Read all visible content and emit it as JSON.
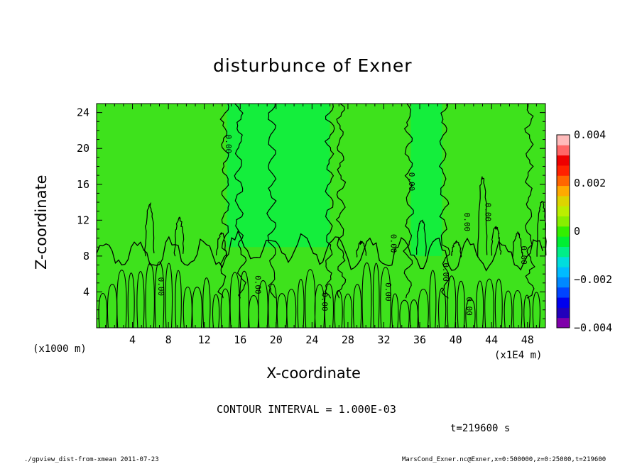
{
  "chart_data": {
    "type": "heatmap",
    "title": "disturbunce of Exner",
    "xlabel": "X-coordinate",
    "ylabel": "Z-coordinate",
    "x_unit_left": "(x1000 m)",
    "x_unit_right": "(x1E4 m)",
    "xlim": [
      0,
      50
    ],
    "ylim": [
      0,
      25
    ],
    "x_ticks": [
      "4",
      "8",
      "12",
      "16",
      "20",
      "24",
      "28",
      "32",
      "36",
      "40",
      "44",
      "48"
    ],
    "y_ticks": [
      "4",
      "8",
      "12",
      "16",
      "20",
      "24"
    ],
    "colorbar": {
      "range": [
        -0.004,
        0.004
      ],
      "tick_labels": [
        "0.004",
        "0.002",
        "0",
        "−0.002",
        "−0.004"
      ],
      "colors": [
        "#7f00aa",
        "#2200bb",
        "#0000ee",
        "#0044ff",
        "#0088ff",
        "#00bbff",
        "#00dddd",
        "#00ee88",
        "#00ee33",
        "#33ee00",
        "#88ee00",
        "#bbee00",
        "#ddd400",
        "#ffaa00",
        "#ff6600",
        "#ff2200",
        "#ee0000",
        "#ff6666",
        "#ffbbbb"
      ]
    },
    "regions": [
      {
        "x0": 0,
        "x1": 14.5,
        "z0": 0,
        "z1": 25,
        "level": "0"
      },
      {
        "x0": 14.5,
        "x1": 26,
        "z0": 9,
        "z1": 25,
        "level": "-0.0005"
      },
      {
        "x0": 26,
        "x1": 35,
        "z0": 0,
        "z1": 25,
        "level": "0"
      },
      {
        "x0": 35,
        "x1": 38.5,
        "z0": 8,
        "z1": 25,
        "level": "-0.0005"
      },
      {
        "x0": 38.5,
        "x1": 50,
        "z0": 0,
        "z1": 25,
        "level": "0"
      }
    ],
    "contour_labels": [
      {
        "text": "0.00",
        "x": 14.4,
        "z": 20.5
      },
      {
        "text": "0.00",
        "x": 6.9,
        "z": 4.6
      },
      {
        "text": "0.00",
        "x": 17.7,
        "z": 4.8
      },
      {
        "text": "0.00",
        "x": 25.1,
        "z": 2.9
      },
      {
        "text": "0.00",
        "x": 32.2,
        "z": 4.0
      },
      {
        "text": "0.00",
        "x": 32.8,
        "z": 9.4
      },
      {
        "text": "0.00",
        "x": 34.8,
        "z": 16.3
      },
      {
        "text": "0.00",
        "x": 38.6,
        "z": 6.2
      },
      {
        "text": "0.00",
        "x": 41.2,
        "z": 2.4
      },
      {
        "text": "0.00",
        "x": 41.0,
        "z": 11.8
      },
      {
        "text": "0.00",
        "x": 43.3,
        "z": 12.9
      },
      {
        "text": "0.00",
        "x": 47.3,
        "z": 8.1
      }
    ],
    "contour_interval": "CONTOUR INTERVAL = 1.000E-03",
    "time": "t=219600  s"
  },
  "footer": {
    "left": "./gpview_dist-from-xmean   2011-07-23",
    "right": "MarsCond_Exner.nc@Exner,x=0:500000,z=0:25000,t=219600"
  }
}
